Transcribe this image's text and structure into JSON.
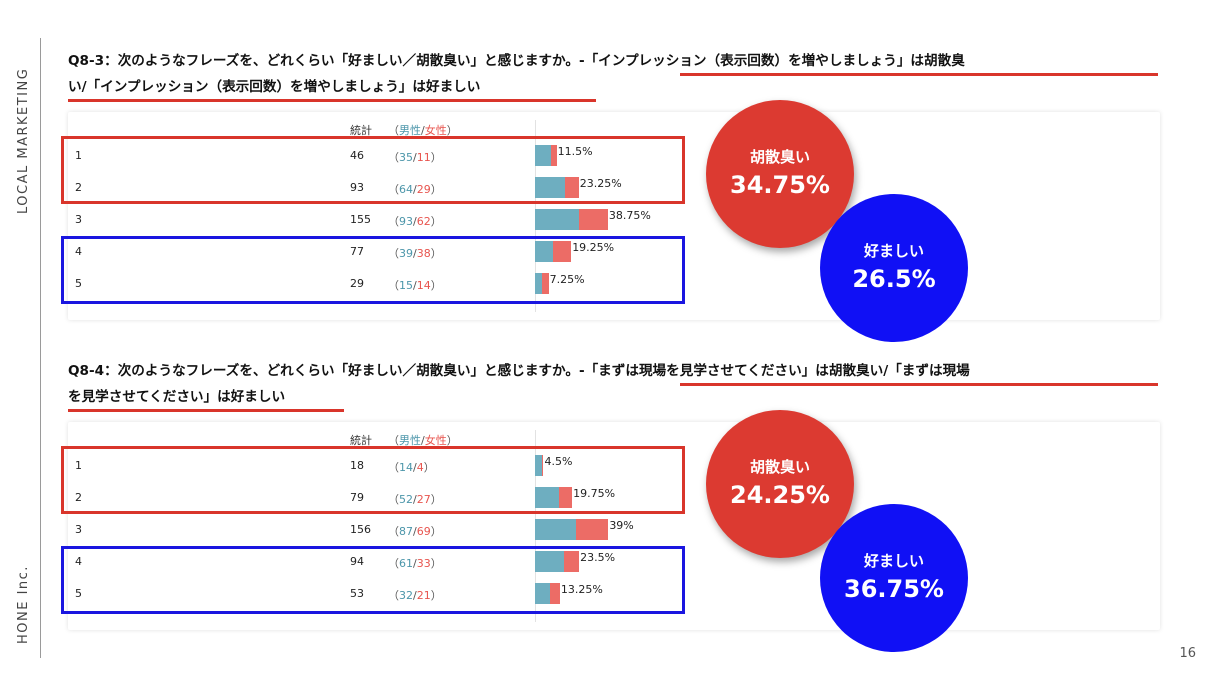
{
  "sidebar": {
    "top_label": "LOCAL MARKETING",
    "bottom_label": "HONE Inc."
  },
  "page_number": "16",
  "colors": {
    "male": "#6eaec0",
    "female": "#ec6c66",
    "highlight_red": "#d9352b",
    "highlight_blue": "#1a16e0"
  },
  "table_header": {
    "total": "統計",
    "open": "（",
    "male": "男性",
    "slash": "/",
    "female": "女性",
    "close": "）"
  },
  "chart_data": [
    {
      "type": "bar",
      "orientation": "horizontal-stacked",
      "title_line1": "Q8-3：次のようなフレーズを、どれくらい「好ましい／胡散臭い」と感じますか。-「インプレッション（表示回数）を増やしましょう」は胡散臭",
      "title_line2": "い/「インプレッション（表示回数）を増やしましょう」は好ましい",
      "categories": [
        "1",
        "2",
        "3",
        "4",
        "5"
      ],
      "totals": [
        46,
        93,
        155,
        77,
        29
      ],
      "series": [
        {
          "name": "男性",
          "values": [
            35,
            64,
            93,
            39,
            15
          ]
        },
        {
          "name": "女性",
          "values": [
            11,
            29,
            62,
            38,
            14
          ]
        }
      ],
      "percent_labels": [
        "11.5%",
        "23.25%",
        "38.75%",
        "19.25%",
        "7.25%"
      ],
      "callout_negative": {
        "label": "胡散臭い",
        "value": "34.75%"
      },
      "callout_positive": {
        "label": "好ましい",
        "value": "26.5%"
      }
    },
    {
      "type": "bar",
      "orientation": "horizontal-stacked",
      "title_line1": "Q8-4：次のようなフレーズを、どれくらい「好ましい／胡散臭い」と感じますか。-「まずは現場を見学させてください」は胡散臭い/「まずは現場",
      "title_line2": "を見学させてください」は好ましい",
      "categories": [
        "1",
        "2",
        "3",
        "4",
        "5"
      ],
      "totals": [
        18,
        79,
        156,
        94,
        53
      ],
      "series": [
        {
          "name": "男性",
          "values": [
            14,
            52,
            87,
            61,
            32
          ]
        },
        {
          "name": "女性",
          "values": [
            4,
            27,
            69,
            33,
            21
          ]
        }
      ],
      "percent_labels": [
        "4.5%",
        "19.75%",
        "39%",
        "23.5%",
        "13.25%"
      ],
      "callout_negative": {
        "label": "胡散臭い",
        "value": "24.25%"
      },
      "callout_positive": {
        "label": "好ましい",
        "value": "36.75%"
      }
    }
  ]
}
